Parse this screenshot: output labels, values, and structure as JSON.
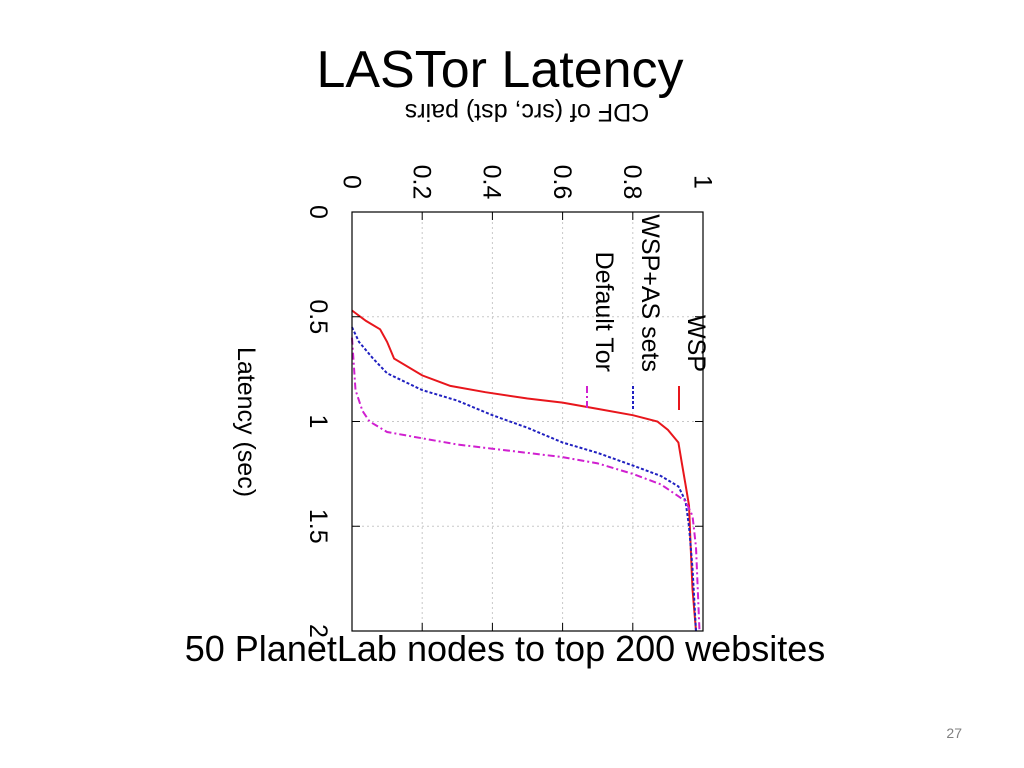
{
  "slide": {
    "title": "LASTor Latency",
    "caption": "50 PlanetLab nodes to top 200 websites",
    "page_number": "27"
  },
  "chart_data": {
    "type": "line",
    "rotated_90_clockwise": true,
    "ylabel": "CDF of (src, dst) pairs",
    "xlabel": "Latency (sec)",
    "xlim": [
      0,
      2
    ],
    "ylim": [
      0,
      1
    ],
    "x_ticks": [
      "0",
      "0.5",
      "1",
      "1.5",
      "2"
    ],
    "y_ticks": [
      "0",
      "0.2",
      "0.4",
      "0.6",
      "0.8",
      "1"
    ],
    "grid": true,
    "legend_position": "top-right",
    "series": [
      {
        "name": "WSP",
        "color": "#e8161c",
        "dash": "solid",
        "points": [
          [
            0.47,
            0.0
          ],
          [
            0.52,
            0.04
          ],
          [
            0.56,
            0.08
          ],
          [
            0.62,
            0.1
          ],
          [
            0.7,
            0.12
          ],
          [
            0.78,
            0.2
          ],
          [
            0.83,
            0.28
          ],
          [
            0.86,
            0.38
          ],
          [
            0.89,
            0.5
          ],
          [
            0.91,
            0.6
          ],
          [
            0.94,
            0.7
          ],
          [
            0.97,
            0.8
          ],
          [
            1.0,
            0.87
          ],
          [
            1.04,
            0.9
          ],
          [
            1.1,
            0.93
          ],
          [
            1.2,
            0.94
          ],
          [
            1.3,
            0.95
          ],
          [
            1.4,
            0.96
          ],
          [
            1.6,
            0.965
          ],
          [
            1.8,
            0.97
          ],
          [
            2.0,
            0.98
          ]
        ]
      },
      {
        "name": "WSP+AS sets",
        "color": "#2020c0",
        "dash": "dotted",
        "points": [
          [
            0.55,
            0.0
          ],
          [
            0.62,
            0.02
          ],
          [
            0.7,
            0.06
          ],
          [
            0.77,
            0.1
          ],
          [
            0.85,
            0.2
          ],
          [
            0.9,
            0.3
          ],
          [
            0.97,
            0.4
          ],
          [
            1.03,
            0.5
          ],
          [
            1.1,
            0.6
          ],
          [
            1.15,
            0.7
          ],
          [
            1.21,
            0.8
          ],
          [
            1.26,
            0.88
          ],
          [
            1.31,
            0.93
          ],
          [
            1.38,
            0.95
          ],
          [
            1.5,
            0.96
          ],
          [
            1.7,
            0.97
          ],
          [
            2.0,
            0.98
          ]
        ]
      },
      {
        "name": "Default Tor",
        "color": "#d020d0",
        "dash": "dashdot",
        "points": [
          [
            0.6,
            0.0
          ],
          [
            0.85,
            0.01
          ],
          [
            0.95,
            0.03
          ],
          [
            1.0,
            0.05
          ],
          [
            1.05,
            0.1
          ],
          [
            1.08,
            0.2
          ],
          [
            1.11,
            0.3
          ],
          [
            1.13,
            0.4
          ],
          [
            1.15,
            0.5
          ],
          [
            1.17,
            0.6
          ],
          [
            1.2,
            0.7
          ],
          [
            1.25,
            0.8
          ],
          [
            1.3,
            0.88
          ],
          [
            1.38,
            0.95
          ],
          [
            1.45,
            0.97
          ],
          [
            1.6,
            0.98
          ],
          [
            2.0,
            0.99
          ]
        ]
      }
    ]
  }
}
